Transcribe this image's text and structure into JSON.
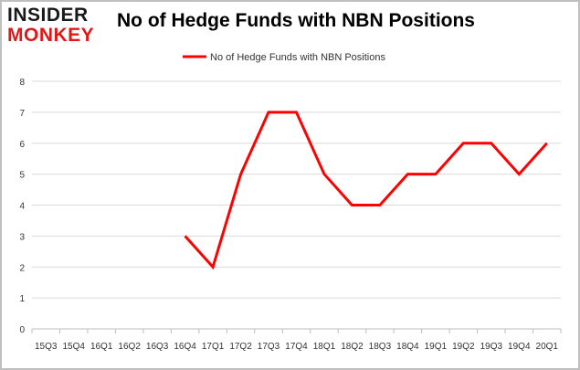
{
  "brand": {
    "line1": "INSIDER",
    "line2": "MONKEY"
  },
  "chart_data": {
    "type": "line",
    "title": "No of Hedge Funds with NBN Positions",
    "xlabel": "",
    "ylabel": "",
    "categories": [
      "15Q3",
      "15Q4",
      "16Q1",
      "16Q2",
      "16Q3",
      "16Q4",
      "17Q1",
      "17Q2",
      "17Q3",
      "17Q4",
      "18Q1",
      "18Q2",
      "18Q3",
      "18Q4",
      "19Q1",
      "19Q2",
      "19Q3",
      "19Q4",
      "20Q1"
    ],
    "series": [
      {
        "name": "No of Hedge Funds with NBN Positions",
        "color": "#ff0000",
        "values": [
          null,
          null,
          null,
          null,
          null,
          3,
          2,
          5,
          7,
          7,
          5,
          4,
          4,
          5,
          5,
          6,
          6,
          5,
          6
        ]
      }
    ],
    "yticks": [
      0,
      1,
      2,
      3,
      4,
      5,
      6,
      7,
      8
    ],
    "ylim": [
      0,
      8
    ],
    "grid": true,
    "legend": "top-center"
  }
}
